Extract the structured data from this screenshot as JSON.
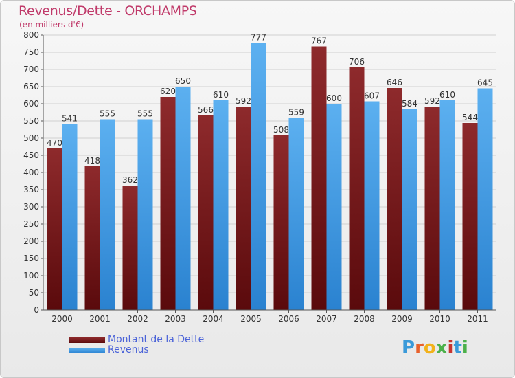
{
  "header": {
    "title": "Revenus/Dette - ORCHAMPS",
    "subtitle": "(en milliers d'€)"
  },
  "colors": {
    "dette": "#7a1a1c",
    "revenus": "#3d9ae8",
    "title": "#c03a6a",
    "legend_text": "#4b63d8",
    "grid": "#d0d0d0"
  },
  "logo": {
    "text": "Proxiti",
    "letter_colors": [
      "#3a9ad9",
      "#e8612c",
      "#f2b21b",
      "#4bb04a",
      "#c8342f",
      "#3a9ad9",
      "#4bb04a"
    ]
  },
  "chart_data": {
    "type": "bar",
    "categories": [
      "2000",
      "2001",
      "2002",
      "2003",
      "2004",
      "2005",
      "2006",
      "2007",
      "2008",
      "2009",
      "2010",
      "2011"
    ],
    "series": [
      {
        "name": "Montant de la Dette",
        "values": [
          470,
          418,
          362,
          620,
          566,
          592,
          508,
          767,
          706,
          646,
          592,
          544
        ]
      },
      {
        "name": "Revenus",
        "values": [
          541,
          555,
          555,
          650,
          610,
          777,
          559,
          600,
          607,
          584,
          610,
          645
        ]
      }
    ],
    "ylim": [
      0,
      800
    ],
    "yticks": [
      0,
      50,
      100,
      150,
      200,
      250,
      300,
      350,
      400,
      450,
      500,
      550,
      600,
      650,
      700,
      750,
      800
    ],
    "grid": true,
    "legend_position": "bottom-left"
  }
}
